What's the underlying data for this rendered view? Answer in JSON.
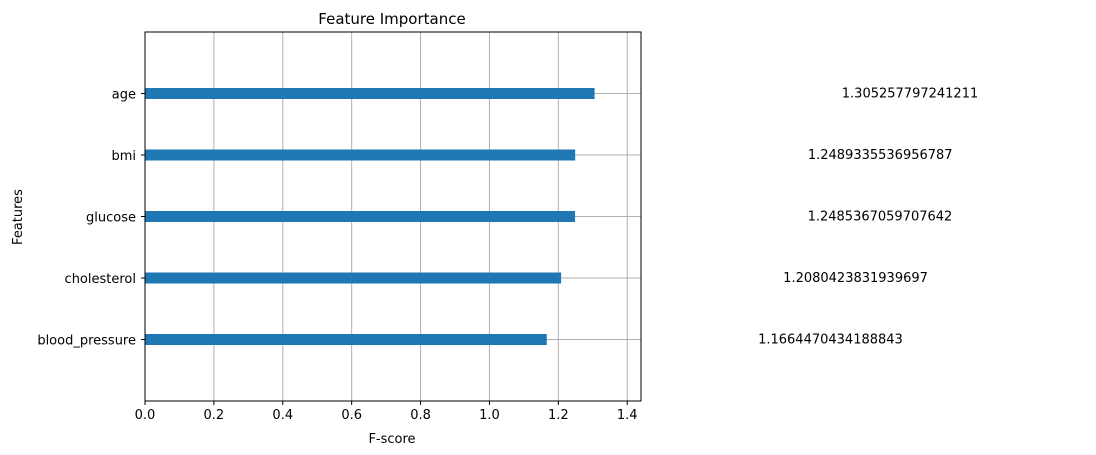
{
  "chart_data": {
    "type": "bar",
    "orientation": "horizontal",
    "title": "Feature Importance",
    "xlabel": "F-score",
    "ylabel": "Features",
    "categories": [
      "blood_pressure",
      "cholesterol",
      "glucose",
      "bmi",
      "age"
    ],
    "values": [
      1.1664470434188843,
      1.2080423831939697,
      1.2485367059707642,
      1.2489335536956787,
      1.305257797241211
    ],
    "value_labels": [
      "1.1664470434188843",
      "1.2080423831939697",
      "1.2485367059707642",
      "1.2489335536956787",
      "1.305257797241211"
    ],
    "xlim": [
      0,
      1.44
    ],
    "xticks": [
      "0.0",
      "0.2",
      "0.4",
      "0.6",
      "0.8",
      "1.0",
      "1.2",
      "1.4"
    ],
    "grid": true,
    "bar_color": "#1f77b4"
  }
}
